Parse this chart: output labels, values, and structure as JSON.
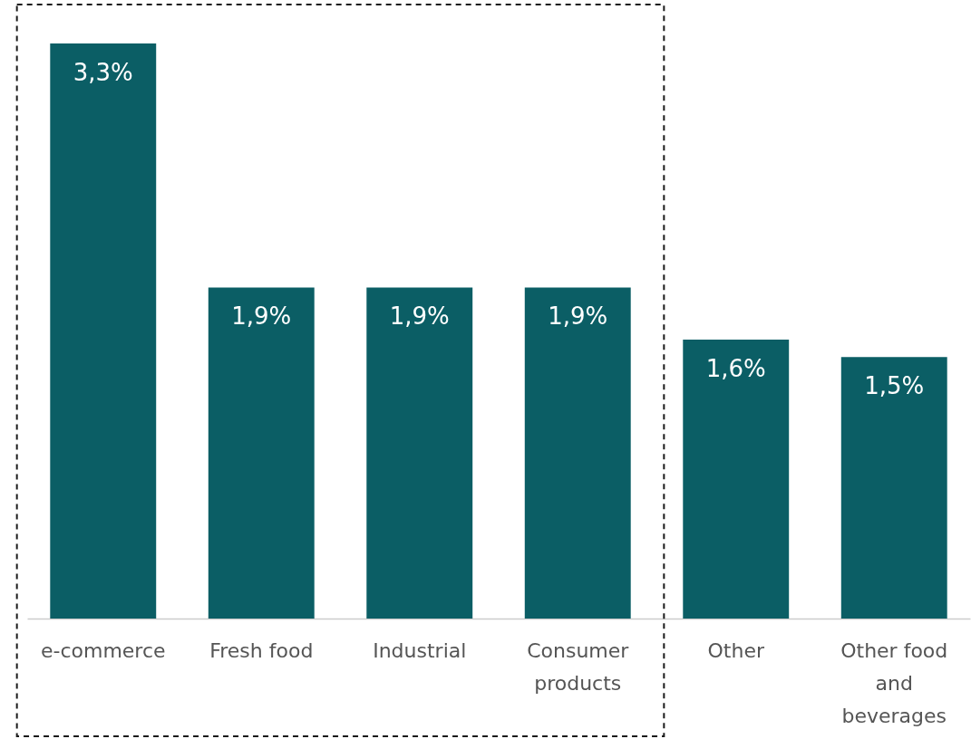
{
  "chart_data": {
    "type": "bar",
    "categories": [
      "e-commerce",
      "Fresh food",
      "Industrial",
      "Consumer products",
      "Other",
      "Other food and beverages"
    ],
    "values": [
      3.3,
      1.9,
      1.9,
      1.9,
      1.6,
      1.5
    ],
    "color": "#0b5e65",
    "value_labels": [
      "3,3%",
      "1,9%",
      "1,9%",
      "1,9%",
      "1,6%",
      "1,5%"
    ],
    "grid": false
  }
}
